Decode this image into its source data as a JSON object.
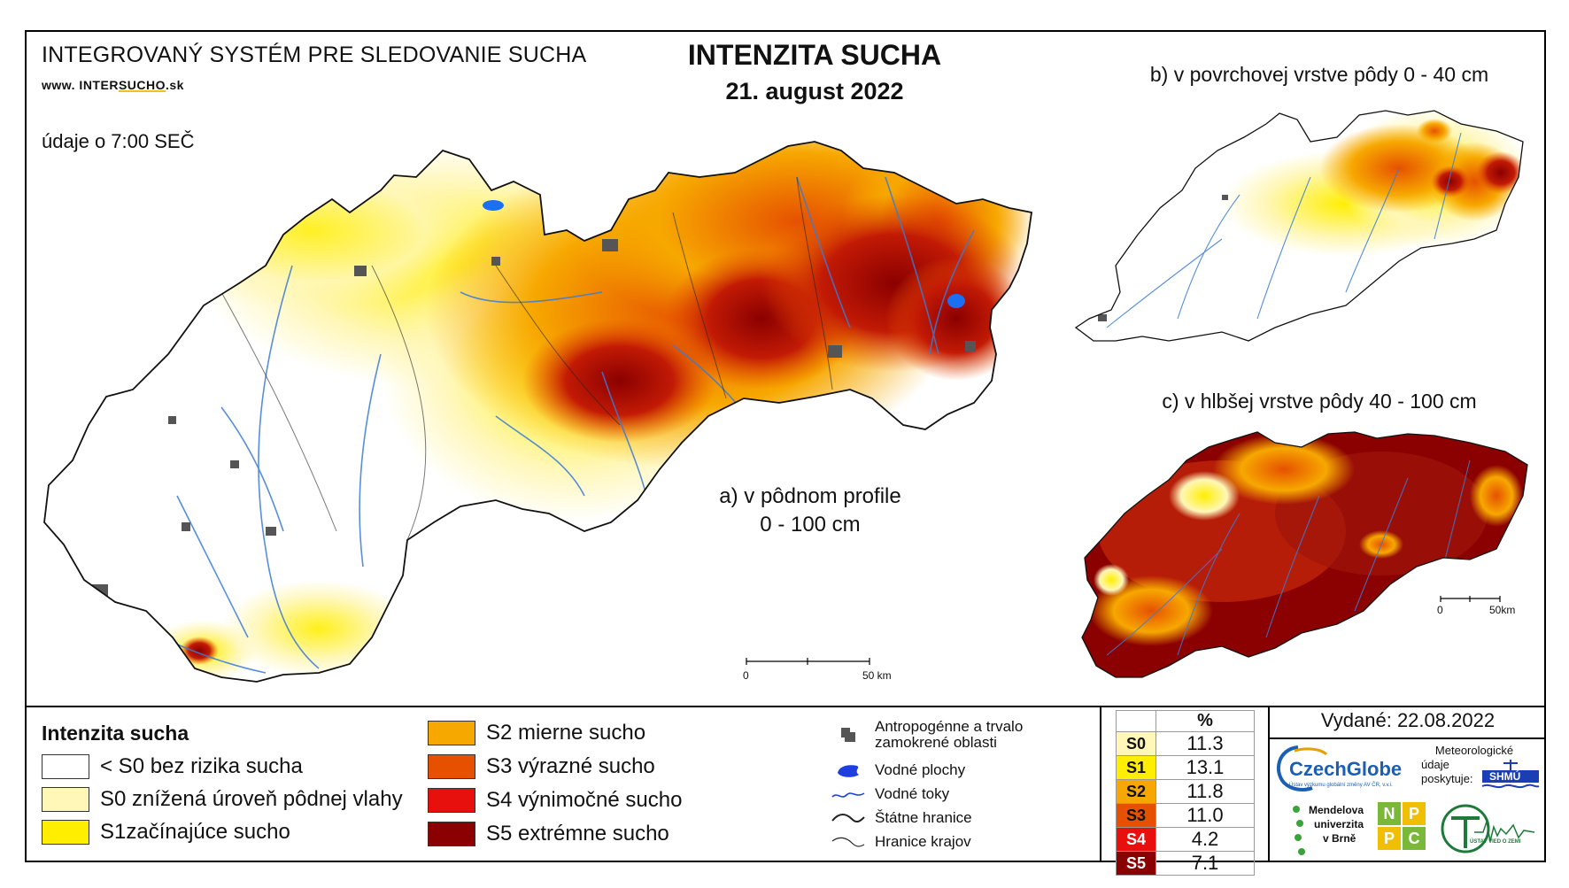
{
  "header": {
    "system_title": "INTEGROVANÝ SYSTÉM PRE SLEDOVANIE SUCHA",
    "url_prefix": "www. INTER",
    "url_underlined": "SUCHO",
    "url_suffix": ".sk",
    "observation_time": "údaje o 7:00 SEČ",
    "title": "INTENZITA SUCHA",
    "date": "21. august 2022"
  },
  "maps": {
    "main": {
      "label_line1": "a) v pôdnom profile",
      "label_line2": "0 - 100 cm"
    },
    "surface": {
      "label": "b) v povrchovej vrstve pôdy 0 - 40 cm"
    },
    "deep": {
      "label": "c) v hlbšej vrstve pôdy 40 - 100 cm"
    }
  },
  "scale_bars": {
    "main": {
      "start": "0",
      "end": "50 km"
    },
    "small": {
      "start": "0",
      "end": "50km"
    }
  },
  "legend": {
    "title": "Intenzita sucha",
    "classes": [
      {
        "label": "< S0 bez rizika sucha",
        "color": "#ffffff"
      },
      {
        "label": "S0 znížená úroveň pôdnej vlahy",
        "color": "#fff7b8"
      },
      {
        "label": "S1začínajúce sucho",
        "color": "#ffee00"
      },
      {
        "label": "S2 mierne sucho",
        "color": "#f7a800"
      },
      {
        "label": "S3 výrazné sucho",
        "color": "#e65100"
      },
      {
        "label": "S4 výnimočné sucho",
        "color": "#e8100c"
      },
      {
        "label": "S5 extrémne sucho",
        "color": "#8b0000"
      }
    ],
    "symbols": [
      {
        "label": "Antropogénne a trvalo zamokrené oblasti",
        "icon": "urban-area-icon"
      },
      {
        "label": "Vodné plochy",
        "icon": "water-body-icon"
      },
      {
        "label": "Vodné toky",
        "icon": "river-icon"
      },
      {
        "label": "Štátne hranice",
        "icon": "state-border-icon"
      },
      {
        "label": "Hranice krajov",
        "icon": "region-border-icon"
      }
    ]
  },
  "percent_table": {
    "header": "%",
    "rows": [
      {
        "class": "S0",
        "value": "11.3",
        "color": "#fff7b8"
      },
      {
        "class": "S1",
        "value": "13.1",
        "color": "#ffee00"
      },
      {
        "class": "S2",
        "value": "11.8",
        "color": "#f7a800"
      },
      {
        "class": "S3",
        "value": "11.0",
        "color": "#e65100"
      },
      {
        "class": "S4",
        "value": "4.2",
        "color": "#e8100c"
      },
      {
        "class": "S5",
        "value": "7.1",
        "color": "#8b0000"
      }
    ]
  },
  "issued": "Vydané: 22.08.2022",
  "logos": {
    "czechglobe": "CzechGlobe",
    "czechglobe_sub": "Ústav výzkumu globální změny AV ČR, v.v.i.",
    "meteo_line1": "Meteorologické",
    "meteo_line2": "údaje",
    "meteo_line3": "poskytuje:",
    "shmu": "SHMÚ",
    "mendel_line1": "Mendelova",
    "mendel_line2": "univerzita",
    "mendel_line3": "v Brně",
    "nppc": [
      "N",
      "P",
      "P",
      "C"
    ],
    "uvz": "ÚSTAV VIED O ZEMI"
  }
}
